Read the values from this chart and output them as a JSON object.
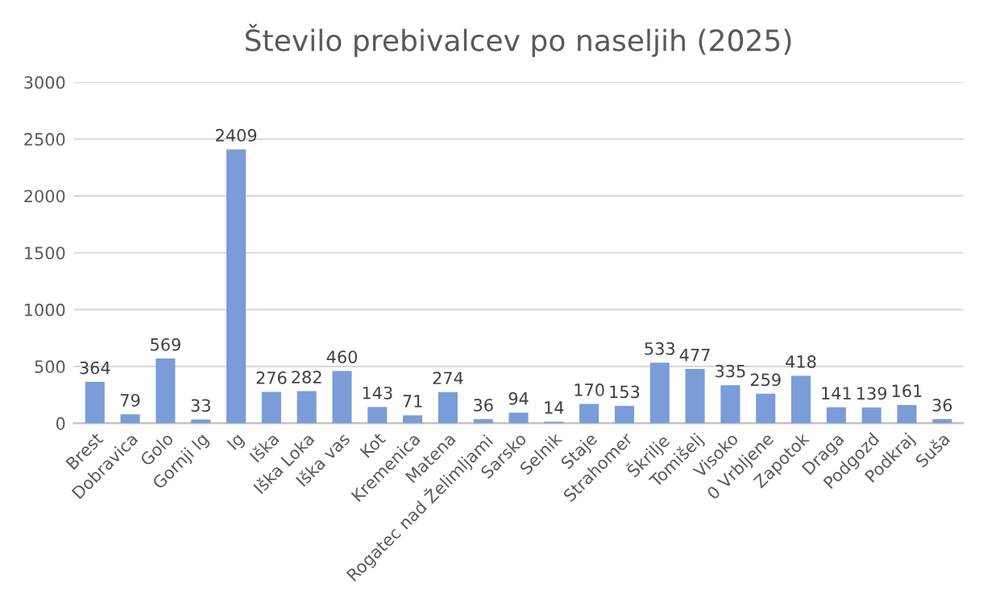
{
  "chart_data": {
    "type": "bar",
    "title": "Število prebivalcev po naseljih (2025)",
    "categories": [
      "Brest",
      "Dobravica",
      "Golo",
      "Gornji Ig",
      "Ig",
      "Iška",
      "Iška Loka",
      "Iška vas",
      "Kot",
      "Kremenica",
      "Matena",
      "Rogatec nad Želimljami",
      "Sarsko",
      "Selnik",
      "Staje",
      "Strahomer",
      "Škrilje",
      "Tomišelj",
      "Visoko",
      "0 Vrbljene",
      "Zapotok",
      "Draga",
      "Podgozd",
      "Podkraj",
      "Suša"
    ],
    "values": [
      364,
      79,
      569,
      33,
      2409,
      276,
      282,
      460,
      143,
      71,
      274,
      36,
      94,
      14,
      170,
      153,
      533,
      477,
      335,
      259,
      418,
      141,
      139,
      161,
      36
    ],
    "color": "#7a9cd8",
    "ylim": [
      0,
      3000
    ],
    "yticks": [
      0,
      500,
      1000,
      1500,
      2000,
      2500,
      3000
    ],
    "grid": "y",
    "data_labels": true
  }
}
